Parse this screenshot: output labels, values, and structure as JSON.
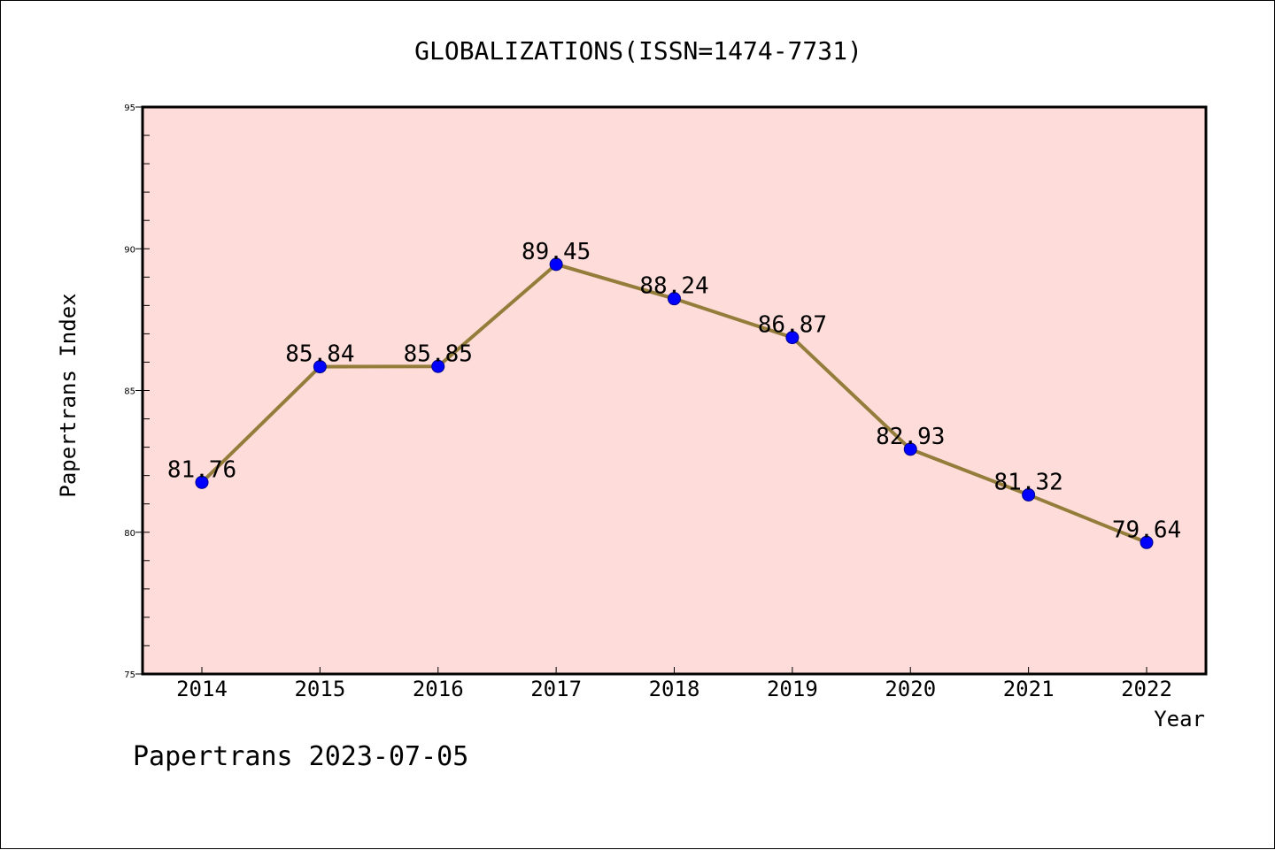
{
  "chart_data": {
    "type": "line",
    "title": "GLOBALIZATIONS(ISSN=1474-7731)",
    "xlabel": "Year",
    "ylabel": "Papertrans Index",
    "categories": [
      "2014",
      "2015",
      "2016",
      "2017",
      "2018",
      "2019",
      "2020",
      "2021",
      "2022"
    ],
    "series": [
      {
        "name": "Papertrans Index",
        "values": [
          81.76,
          85.84,
          85.85,
          89.45,
          88.24,
          86.87,
          82.93,
          81.32,
          79.64
        ],
        "labels": [
          "81.76",
          "85.84",
          "85.85",
          "89.45",
          "88.24",
          "86.87",
          "82.93",
          "81.32",
          "79.64"
        ]
      }
    ],
    "ylim": [
      75,
      95
    ],
    "yticks": [
      75,
      80,
      85,
      90,
      95
    ],
    "ytick_labels": [
      "75",
      "80",
      "85",
      "90",
      "95"
    ],
    "ytick_minor_step": 1,
    "grid": false,
    "footer": "Papertrans 2023-07-05"
  },
  "colors": {
    "plot_background": "#fddcd9",
    "line": "#947d3b",
    "marker": "#0000ff",
    "marker_edge": "#00008b",
    "axes": "#000000",
    "text": "#000000"
  }
}
